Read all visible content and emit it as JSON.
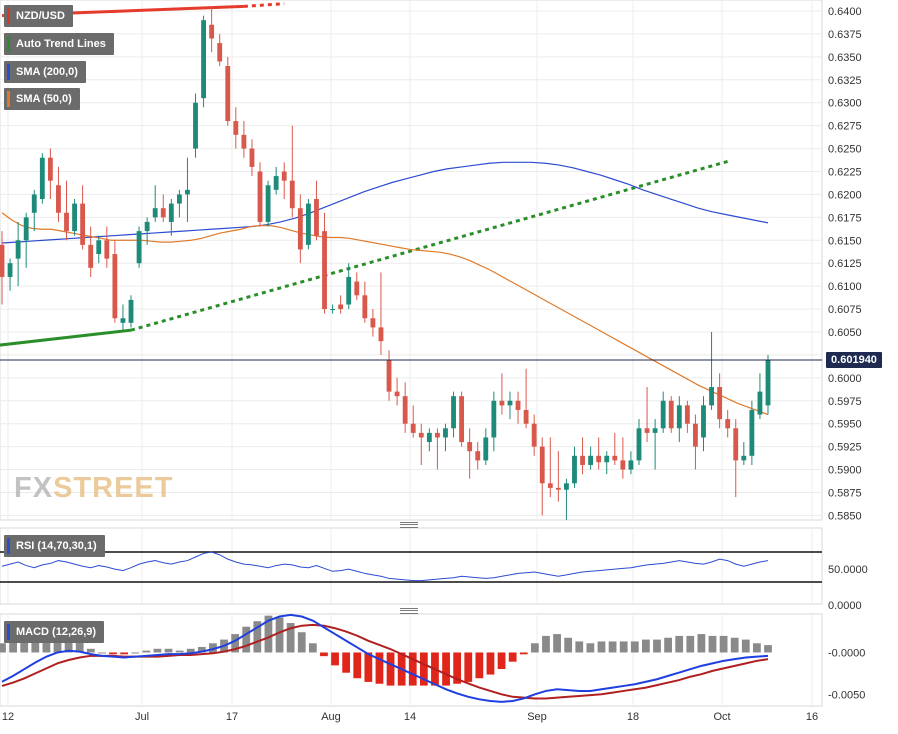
{
  "chart_data": {
    "type": "candlestick",
    "symbol": "NZD/USD",
    "last_price": "0.601940",
    "x_ticks": [
      "12",
      "Jul",
      "17",
      "Aug",
      "14",
      "Sep",
      "18",
      "Oct",
      "16"
    ],
    "main_panel": {
      "ylim": [
        0.5845,
        0.6412
      ],
      "y_ticks": [
        "0.6400",
        "0.6375",
        "0.6350",
        "0.6325",
        "0.6300",
        "0.6275",
        "0.6250",
        "0.6225",
        "0.6200",
        "0.6175",
        "0.6150",
        "0.6125",
        "0.6100",
        "0.6075",
        "0.6050",
        "0.6025",
        "0.6000",
        "0.5975",
        "0.5950",
        "0.5925",
        "0.5900",
        "0.5875",
        "0.5850"
      ],
      "y_tick_values": [
        0.64,
        0.6375,
        0.635,
        0.6325,
        0.63,
        0.6275,
        0.625,
        0.6225,
        0.62,
        0.6175,
        0.615,
        0.6125,
        0.61,
        0.6075,
        0.605,
        0.6025,
        0.6,
        0.5975,
        0.595,
        0.5925,
        0.59,
        0.5875,
        0.585
      ],
      "legend": [
        {
          "label": "NZD/USD",
          "color": "#d23a2f"
        },
        {
          "label": "Auto Trend Lines",
          "color": "#2e8b2e"
        },
        {
          "label": "SMA (200,0)",
          "color": "#2e4bd1"
        },
        {
          "label": "SMA (50,0)",
          "color": "#e07a2a"
        }
      ],
      "candles": [
        {
          "o": 0.6145,
          "h": 0.616,
          "l": 0.608,
          "c": 0.611
        },
        {
          "o": 0.611,
          "h": 0.613,
          "l": 0.6095,
          "c": 0.6125
        },
        {
          "o": 0.613,
          "h": 0.617,
          "l": 0.61,
          "c": 0.615
        },
        {
          "o": 0.615,
          "h": 0.618,
          "l": 0.612,
          "c": 0.6175
        },
        {
          "o": 0.618,
          "h": 0.6205,
          "l": 0.616,
          "c": 0.62
        },
        {
          "o": 0.6195,
          "h": 0.6245,
          "l": 0.619,
          "c": 0.624
        },
        {
          "o": 0.624,
          "h": 0.625,
          "l": 0.6195,
          "c": 0.6215
        },
        {
          "o": 0.621,
          "h": 0.623,
          "l": 0.617,
          "c": 0.618
        },
        {
          "o": 0.618,
          "h": 0.6215,
          "l": 0.615,
          "c": 0.616
        },
        {
          "o": 0.616,
          "h": 0.6195,
          "l": 0.6155,
          "c": 0.619
        },
        {
          "o": 0.619,
          "h": 0.621,
          "l": 0.614,
          "c": 0.6145
        },
        {
          "o": 0.6145,
          "h": 0.6165,
          "l": 0.611,
          "c": 0.612
        },
        {
          "o": 0.6135,
          "h": 0.6155,
          "l": 0.6125,
          "c": 0.615
        },
        {
          "o": 0.615,
          "h": 0.6165,
          "l": 0.612,
          "c": 0.613
        },
        {
          "o": 0.6135,
          "h": 0.615,
          "l": 0.606,
          "c": 0.6065
        },
        {
          "o": 0.606,
          "h": 0.608,
          "l": 0.6052,
          "c": 0.6065
        },
        {
          "o": 0.606,
          "h": 0.609,
          "l": 0.6055,
          "c": 0.6085
        },
        {
          "o": 0.6125,
          "h": 0.6165,
          "l": 0.612,
          "c": 0.616
        },
        {
          "o": 0.616,
          "h": 0.6175,
          "l": 0.6145,
          "c": 0.617
        },
        {
          "o": 0.6175,
          "h": 0.621,
          "l": 0.617,
          "c": 0.6185
        },
        {
          "o": 0.6185,
          "h": 0.62,
          "l": 0.617,
          "c": 0.6175
        },
        {
          "o": 0.617,
          "h": 0.6195,
          "l": 0.6155,
          "c": 0.619
        },
        {
          "o": 0.619,
          "h": 0.6205,
          "l": 0.6175,
          "c": 0.62
        },
        {
          "o": 0.62,
          "h": 0.624,
          "l": 0.617,
          "c": 0.6205
        },
        {
          "o": 0.625,
          "h": 0.631,
          "l": 0.624,
          "c": 0.63
        },
        {
          "o": 0.6305,
          "h": 0.6395,
          "l": 0.6295,
          "c": 0.639
        },
        {
          "o": 0.6385,
          "h": 0.6405,
          "l": 0.6355,
          "c": 0.637
        },
        {
          "o": 0.6365,
          "h": 0.6375,
          "l": 0.634,
          "c": 0.6345
        },
        {
          "o": 0.634,
          "h": 0.635,
          "l": 0.6275,
          "c": 0.628
        },
        {
          "o": 0.628,
          "h": 0.6295,
          "l": 0.625,
          "c": 0.6265
        },
        {
          "o": 0.6265,
          "h": 0.628,
          "l": 0.624,
          "c": 0.625
        },
        {
          "o": 0.625,
          "h": 0.626,
          "l": 0.622,
          "c": 0.623
        },
        {
          "o": 0.6225,
          "h": 0.6235,
          "l": 0.6165,
          "c": 0.617
        },
        {
          "o": 0.617,
          "h": 0.6215,
          "l": 0.6165,
          "c": 0.621
        },
        {
          "o": 0.6205,
          "h": 0.623,
          "l": 0.62,
          "c": 0.622
        },
        {
          "o": 0.6225,
          "h": 0.6235,
          "l": 0.6195,
          "c": 0.6215
        },
        {
          "o": 0.6215,
          "h": 0.6275,
          "l": 0.6175,
          "c": 0.6185
        },
        {
          "o": 0.6185,
          "h": 0.62,
          "l": 0.6125,
          "c": 0.614
        },
        {
          "o": 0.6145,
          "h": 0.6195,
          "l": 0.614,
          "c": 0.619
        },
        {
          "o": 0.6195,
          "h": 0.6215,
          "l": 0.615,
          "c": 0.6155
        },
        {
          "o": 0.616,
          "h": 0.618,
          "l": 0.607,
          "c": 0.6075
        },
        {
          "o": 0.6075,
          "h": 0.608,
          "l": 0.607,
          "c": 0.6075
        },
        {
          "o": 0.608,
          "h": 0.609,
          "l": 0.607,
          "c": 0.6075
        },
        {
          "o": 0.608,
          "h": 0.6125,
          "l": 0.6075,
          "c": 0.611
        },
        {
          "o": 0.6105,
          "h": 0.6115,
          "l": 0.6085,
          "c": 0.609
        },
        {
          "o": 0.609,
          "h": 0.6105,
          "l": 0.606,
          "c": 0.6065
        },
        {
          "o": 0.6065,
          "h": 0.6075,
          "l": 0.6045,
          "c": 0.6055
        },
        {
          "o": 0.6055,
          "h": 0.6115,
          "l": 0.6025,
          "c": 0.604
        },
        {
          "o": 0.602,
          "h": 0.603,
          "l": 0.5975,
          "c": 0.5985
        },
        {
          "o": 0.5985,
          "h": 0.6,
          "l": 0.597,
          "c": 0.598
        },
        {
          "o": 0.598,
          "h": 0.5995,
          "l": 0.594,
          "c": 0.595
        },
        {
          "o": 0.595,
          "h": 0.597,
          "l": 0.5935,
          "c": 0.594
        },
        {
          "o": 0.594,
          "h": 0.595,
          "l": 0.5905,
          "c": 0.5935
        },
        {
          "o": 0.593,
          "h": 0.5945,
          "l": 0.592,
          "c": 0.594
        },
        {
          "o": 0.594,
          "h": 0.5945,
          "l": 0.59,
          "c": 0.5935
        },
        {
          "o": 0.5935,
          "h": 0.595,
          "l": 0.592,
          "c": 0.5945
        },
        {
          "o": 0.5945,
          "h": 0.5985,
          "l": 0.5935,
          "c": 0.598
        },
        {
          "o": 0.598,
          "h": 0.5985,
          "l": 0.5925,
          "c": 0.593
        },
        {
          "o": 0.593,
          "h": 0.5945,
          "l": 0.589,
          "c": 0.592
        },
        {
          "o": 0.592,
          "h": 0.593,
          "l": 0.59,
          "c": 0.591
        },
        {
          "o": 0.591,
          "h": 0.5945,
          "l": 0.5905,
          "c": 0.5935
        },
        {
          "o": 0.5935,
          "h": 0.5985,
          "l": 0.592,
          "c": 0.5975
        },
        {
          "o": 0.5975,
          "h": 0.6005,
          "l": 0.596,
          "c": 0.597
        },
        {
          "o": 0.597,
          "h": 0.5985,
          "l": 0.5955,
          "c": 0.5975
        },
        {
          "o": 0.5975,
          "h": 0.5985,
          "l": 0.595,
          "c": 0.5965
        },
        {
          "o": 0.5965,
          "h": 0.601,
          "l": 0.5945,
          "c": 0.595
        },
        {
          "o": 0.595,
          "h": 0.596,
          "l": 0.5915,
          "c": 0.5925
        },
        {
          "o": 0.5925,
          "h": 0.5935,
          "l": 0.585,
          "c": 0.5885
        },
        {
          "o": 0.5885,
          "h": 0.5935,
          "l": 0.587,
          "c": 0.588
        },
        {
          "o": 0.588,
          "h": 0.592,
          "l": 0.5865,
          "c": 0.5878
        },
        {
          "o": 0.5878,
          "h": 0.589,
          "l": 0.5845,
          "c": 0.5885
        },
        {
          "o": 0.5885,
          "h": 0.5925,
          "l": 0.588,
          "c": 0.5915
        },
        {
          "o": 0.5915,
          "h": 0.5935,
          "l": 0.5895,
          "c": 0.5905
        },
        {
          "o": 0.5905,
          "h": 0.5925,
          "l": 0.59,
          "c": 0.5915
        },
        {
          "o": 0.5915,
          "h": 0.5935,
          "l": 0.59,
          "c": 0.5908
        },
        {
          "o": 0.5908,
          "h": 0.592,
          "l": 0.5895,
          "c": 0.5915
        },
        {
          "o": 0.5915,
          "h": 0.594,
          "l": 0.5905,
          "c": 0.591
        },
        {
          "o": 0.591,
          "h": 0.5935,
          "l": 0.589,
          "c": 0.59
        },
        {
          "o": 0.59,
          "h": 0.592,
          "l": 0.5895,
          "c": 0.591
        },
        {
          "o": 0.591,
          "h": 0.5955,
          "l": 0.5905,
          "c": 0.5945
        },
        {
          "o": 0.5945,
          "h": 0.599,
          "l": 0.593,
          "c": 0.594
        },
        {
          "o": 0.594,
          "h": 0.5955,
          "l": 0.59,
          "c": 0.5945
        },
        {
          "o": 0.5945,
          "h": 0.5985,
          "l": 0.594,
          "c": 0.5975
        },
        {
          "o": 0.5975,
          "h": 0.598,
          "l": 0.594,
          "c": 0.5945
        },
        {
          "o": 0.5945,
          "h": 0.598,
          "l": 0.593,
          "c": 0.597
        },
        {
          "o": 0.597,
          "h": 0.5975,
          "l": 0.594,
          "c": 0.595
        },
        {
          "o": 0.595,
          "h": 0.596,
          "l": 0.59,
          "c": 0.5925
        },
        {
          "o": 0.5935,
          "h": 0.598,
          "l": 0.592,
          "c": 0.597
        },
        {
          "o": 0.597,
          "h": 0.605,
          "l": 0.5965,
          "c": 0.599
        },
        {
          "o": 0.599,
          "h": 0.6005,
          "l": 0.5945,
          "c": 0.5955
        },
        {
          "o": 0.5955,
          "h": 0.5965,
          "l": 0.5935,
          "c": 0.5945
        },
        {
          "o": 0.5945,
          "h": 0.5955,
          "l": 0.587,
          "c": 0.591
        },
        {
          "o": 0.591,
          "h": 0.593,
          "l": 0.5905,
          "c": 0.5915
        },
        {
          "o": 0.5915,
          "h": 0.5975,
          "l": 0.5905,
          "c": 0.5965
        },
        {
          "o": 0.596,
          "h": 0.6005,
          "l": 0.5955,
          "c": 0.5985
        },
        {
          "o": 0.597,
          "h": 0.6025,
          "l": 0.596,
          "c": 0.6019
        }
      ],
      "sma50": [
        0.618,
        0.6172,
        0.6166,
        0.6163,
        0.6162,
        0.6162,
        0.616,
        0.6158,
        0.6156,
        0.6154,
        0.6152,
        0.615,
        0.615,
        0.615,
        0.615,
        0.6149,
        0.6148,
        0.6148,
        0.6149,
        0.615,
        0.6152,
        0.6155,
        0.6158,
        0.616,
        0.6162,
        0.6165,
        0.6166,
        0.6166,
        0.6164,
        0.6161,
        0.6158,
        0.6156,
        0.6154,
        0.6153,
        0.6153,
        0.6152,
        0.615,
        0.6148,
        0.6146,
        0.6144,
        0.6142,
        0.614,
        0.6139,
        0.6138,
        0.6137,
        0.6135,
        0.6132,
        0.6128,
        0.6123,
        0.6118,
        0.6112,
        0.6106,
        0.61,
        0.6094,
        0.6088,
        0.6082,
        0.6076,
        0.607,
        0.6064,
        0.6058,
        0.6052,
        0.6046,
        0.604,
        0.6034,
        0.6028,
        0.6022,
        0.6016,
        0.601,
        0.6004,
        0.5998,
        0.5992,
        0.5987,
        0.5982,
        0.5977,
        0.5972,
        0.5968,
        0.5964,
        0.596
      ],
      "sma50_start_index": 0,
      "sma200": [
        0.6147,
        0.6148,
        0.6149,
        0.615,
        0.6151,
        0.6152,
        0.6153,
        0.6154,
        0.6155,
        0.6156,
        0.6157,
        0.6158,
        0.6159,
        0.616,
        0.6161,
        0.6162,
        0.6163,
        0.6164,
        0.6165,
        0.6167,
        0.617,
        0.6174,
        0.6179,
        0.6185,
        0.6191,
        0.6197,
        0.6203,
        0.6208,
        0.6213,
        0.6217,
        0.6221,
        0.6225,
        0.6228,
        0.623,
        0.6232,
        0.6234,
        0.6235,
        0.6235,
        0.6235,
        0.6234,
        0.6232,
        0.6229,
        0.6225,
        0.6221,
        0.6216,
        0.6211,
        0.6205,
        0.62,
        0.6195,
        0.619,
        0.6185,
        0.6181,
        0.6178,
        0.6175,
        0.6172,
        0.6169
      ],
      "trend_lines": [
        {
          "color": "red",
          "style": "solid",
          "from": [
            0,
            0.6395
          ],
          "to": [
            30,
            0.6405
          ]
        },
        {
          "color": "red",
          "style": "dotted",
          "from": [
            30,
            0.6405
          ],
          "to": [
            35,
            0.6408
          ]
        },
        {
          "color": "green",
          "style": "solid",
          "from": [
            -16,
            0.602
          ],
          "to": [
            16,
            0.6052
          ]
        },
        {
          "color": "green",
          "style": "dotted",
          "from": [
            16,
            0.6052
          ],
          "to": [
            90,
            0.6236
          ]
        }
      ]
    },
    "rsi_panel": {
      "legend": "RSI (14,70,30,1)",
      "y_ticks": [
        "50.0000",
        "0.0000"
      ],
      "ylim": [
        0,
        100
      ],
      "upper": 70,
      "lower": 30,
      "values": [
        52,
        55,
        58,
        53,
        50,
        54,
        56,
        60,
        58,
        55,
        52,
        50,
        53,
        51,
        48,
        46,
        50,
        55,
        58,
        60,
        57,
        55,
        58,
        60,
        65,
        70,
        72,
        68,
        62,
        58,
        55,
        54,
        52,
        50,
        53,
        55,
        54,
        51,
        50,
        53,
        49,
        45,
        46,
        48,
        45,
        42,
        40,
        38,
        35,
        34,
        33,
        32,
        32,
        33,
        34,
        35,
        36,
        38,
        37,
        36,
        35,
        36,
        38,
        40,
        42,
        43,
        44,
        42,
        40,
        38,
        40,
        42,
        44,
        45,
        46,
        47,
        48,
        49,
        50,
        52,
        54,
        55,
        56,
        58,
        60,
        58,
        56,
        55,
        58,
        62,
        60,
        55,
        52,
        55,
        58,
        60
      ],
      "color": "#2e4bd1"
    },
    "macd_panel": {
      "legend": "MACD (12,26,9)",
      "y_ticks": [
        "-0.0000",
        "-0.0050"
      ],
      "y_tick_values": [
        0.0,
        -0.005
      ],
      "ylim": [
        -0.0064,
        0.0046
      ],
      "macd": [
        -0.0035,
        -0.0028,
        -0.002,
        -0.0012,
        -0.0005,
        0.0,
        0.0002,
        0.0001,
        -0.0002,
        -0.0004,
        -0.0005,
        -0.0006,
        -0.0005,
        -0.0004,
        -0.0003,
        -0.0002,
        -0.0002,
        -0.0001,
        0.0001,
        0.0004,
        0.0008,
        0.0014,
        0.0022,
        0.003,
        0.0038,
        0.0043,
        0.0045,
        0.0043,
        0.0038,
        0.003,
        0.0022,
        0.0014,
        0.0006,
        -0.0002,
        -0.0008,
        -0.0014,
        -0.002,
        -0.0026,
        -0.0032,
        -0.0038,
        -0.0044,
        -0.0049,
        -0.0053,
        -0.0056,
        -0.0058,
        -0.0059,
        -0.0058,
        -0.0055,
        -0.005,
        -0.0046,
        -0.0044,
        -0.0045,
        -0.0046,
        -0.0046,
        -0.0044,
        -0.0042,
        -0.004,
        -0.0038,
        -0.0035,
        -0.0032,
        -0.0028,
        -0.0024,
        -0.002,
        -0.0016,
        -0.0013,
        -0.001,
        -0.0008,
        -0.0006,
        -0.0005,
        -0.0004
      ],
      "signal": [
        -0.004,
        -0.0036,
        -0.0031,
        -0.0025,
        -0.0019,
        -0.0013,
        -0.0009,
        -0.0006,
        -0.0004,
        -0.0004,
        -0.0004,
        -0.0005,
        -0.0005,
        -0.0005,
        -0.0005,
        -0.0004,
        -0.0003,
        -0.0003,
        -0.0002,
        -0.0001,
        0.0001,
        0.0004,
        0.0008,
        0.0013,
        0.0018,
        0.0024,
        0.0029,
        0.0032,
        0.0033,
        0.0032,
        0.0029,
        0.0025,
        0.002,
        0.0014,
        0.0009,
        0.0004,
        -0.0002,
        -0.0008,
        -0.0014,
        -0.002,
        -0.0026,
        -0.0032,
        -0.0037,
        -0.0042,
        -0.0046,
        -0.005,
        -0.0053,
        -0.0054,
        -0.0055,
        -0.0055,
        -0.0054,
        -0.0053,
        -0.0052,
        -0.0051,
        -0.005,
        -0.0048,
        -0.0046,
        -0.0044,
        -0.0042,
        -0.0039,
        -0.0036,
        -0.0033,
        -0.0029,
        -0.0026,
        -0.0022,
        -0.0019,
        -0.0016,
        -0.0013,
        -0.001,
        -0.0008
      ]
    }
  },
  "watermark": {
    "part1": "FX",
    "part2": "STREET"
  },
  "colors": {
    "up": "#1e8a7a",
    "down": "#d9584c",
    "grid": "#ececec",
    "axis_text": "#333333",
    "price_line": "#1f2a50"
  }
}
